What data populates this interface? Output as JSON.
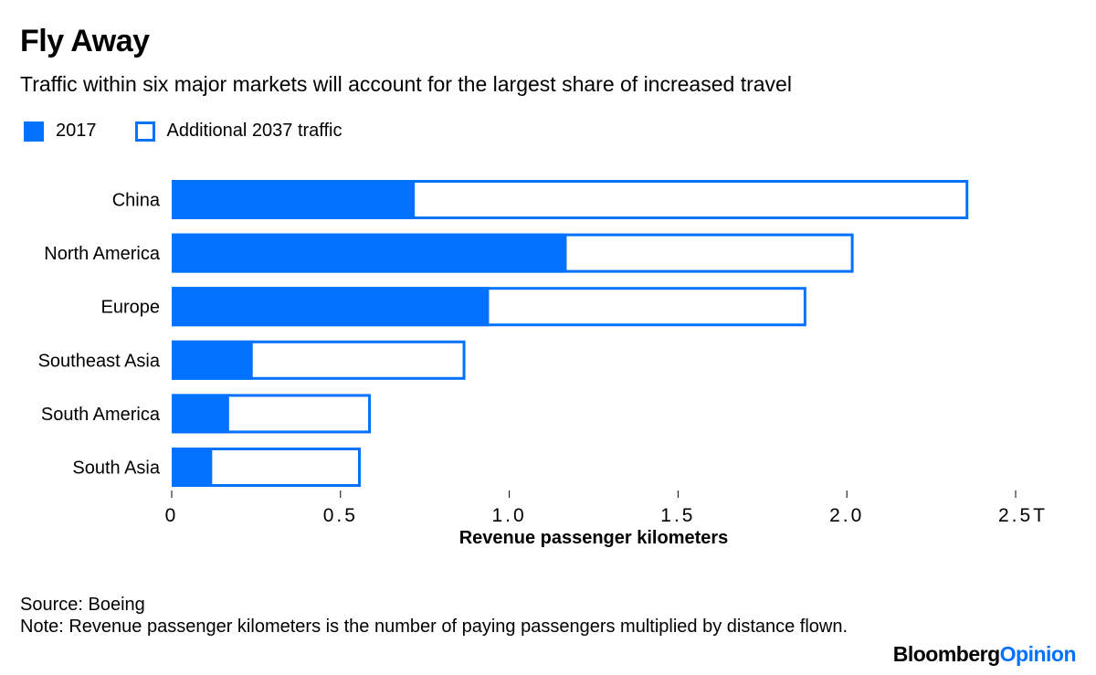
{
  "header": {
    "title": "Fly Away",
    "subtitle": "Traffic within six major markets will account for the largest share of increased travel"
  },
  "legend": [
    {
      "label": "2017",
      "style": "filled"
    },
    {
      "label": "Additional 2037 traffic",
      "style": "outline"
    }
  ],
  "colors": {
    "accent": "#0072ff",
    "text": "#000000",
    "background": "#ffffff"
  },
  "chart_data": {
    "type": "bar",
    "orientation": "horizontal",
    "stacked": true,
    "title": "Fly Away",
    "subtitle": "Traffic within six major markets will account for the largest share of increased travel",
    "categories": [
      "China",
      "North America",
      "Europe",
      "Southeast Asia",
      "South America",
      "South Asia"
    ],
    "series": [
      {
        "name": "2017",
        "values": [
          0.72,
          1.17,
          0.94,
          0.24,
          0.17,
          0.12
        ]
      },
      {
        "name": "Additional 2037 traffic",
        "values": [
          1.64,
          0.85,
          0.94,
          0.63,
          0.42,
          0.44
        ]
      }
    ],
    "totals_2037": [
      2.36,
      2.02,
      1.88,
      0.87,
      0.59,
      0.56
    ],
    "unit": "trillion revenue passenger kilometers",
    "xlabel": "Revenue passenger kilometers",
    "ylabel": "",
    "xlim": [
      0,
      2.5
    ],
    "xticks": [
      0,
      0.5,
      1.0,
      1.5,
      2.0,
      2.5
    ],
    "xtick_labels": [
      "0",
      "0.5",
      "1.0",
      "1.5",
      "2.0",
      "2.5T"
    ],
    "grid": false,
    "legend_position": "top-left"
  },
  "footer": {
    "source": "Source: Boeing",
    "note": "Note: Revenue passenger kilometers is the number of paying passengers multiplied by distance flown.",
    "brand_part1": "Bloomberg",
    "brand_part2": "Opinion"
  }
}
